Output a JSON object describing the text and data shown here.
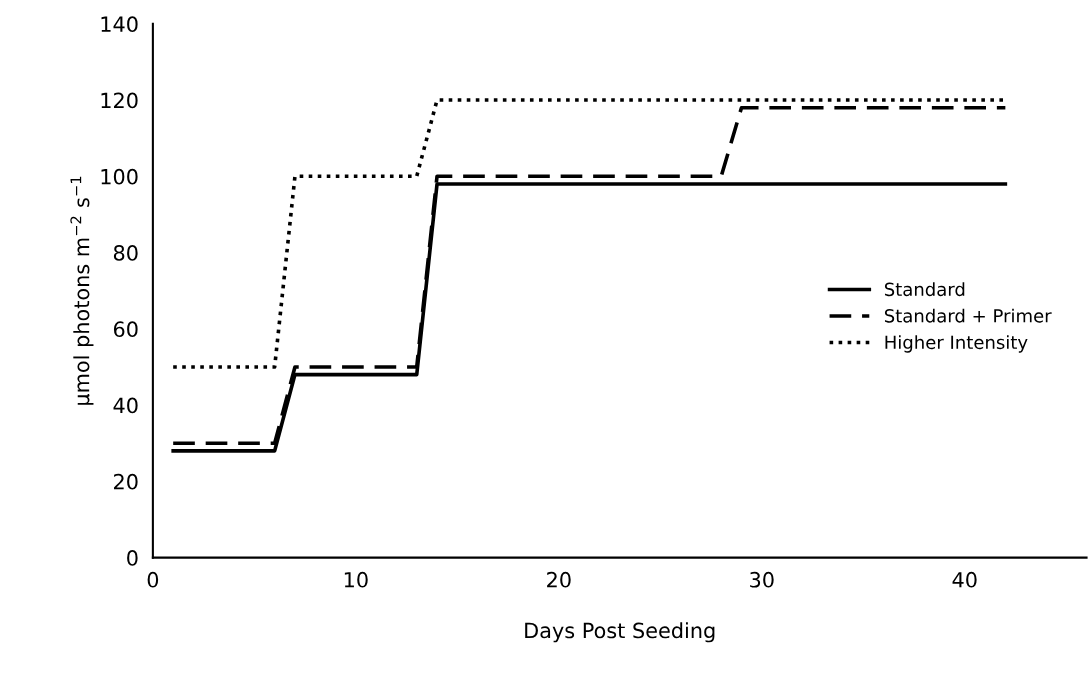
{
  "chart_data": {
    "type": "line",
    "xlabel": "Days Post Seeding",
    "ylabel": "µmol photons m$^{−2}$ s$^{−1}$",
    "xlim": [
      0,
      46
    ],
    "xticks": [
      0,
      10,
      20,
      30,
      40
    ],
    "ylim": [
      0,
      140
    ],
    "yticks": [
      0,
      20,
      40,
      60,
      80,
      100,
      120,
      140
    ],
    "grid": false,
    "legend": "right",
    "marker": "none",
    "series": [
      {
        "name": "Standard",
        "color": "#000000",
        "line_style": "solid",
        "x": [
          1,
          6,
          7,
          13,
          14,
          42
        ],
        "values": [
          28,
          28,
          48,
          48,
          98,
          98
        ]
      },
      {
        "name": "Standard + Primer",
        "color": "#000000",
        "line_style": "dashed",
        "x": [
          1,
          6,
          7,
          13,
          14,
          28,
          29,
          42
        ],
        "values": [
          30,
          30,
          50,
          50,
          100,
          100,
          118,
          118
        ]
      },
      {
        "name": "Higher Intensity",
        "color": "#000000",
        "line_style": "dotted",
        "x": [
          1,
          6,
          7,
          13,
          14,
          42
        ],
        "values": [
          50,
          50,
          100,
          100,
          120,
          120
        ]
      }
    ]
  }
}
